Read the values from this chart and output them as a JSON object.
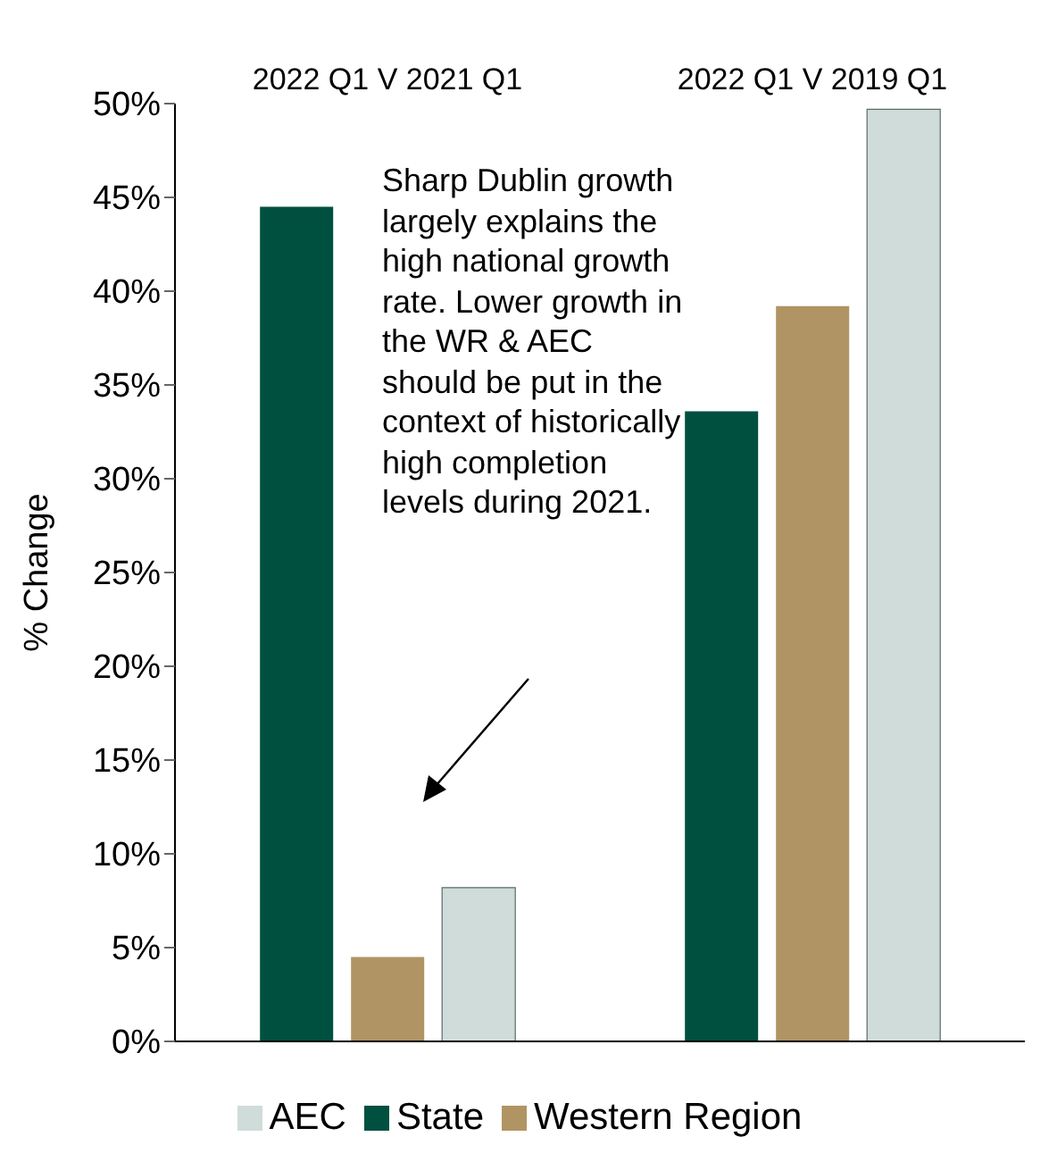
{
  "chart_data": {
    "type": "bar",
    "categories": [
      "2022 Q1 V 2021 Q1",
      "2022 Q1 V 2019 Q1"
    ],
    "ylabel": "% Change",
    "series": [
      {
        "name": "State",
        "color": "#00503f",
        "values": [
          44.5,
          33.6
        ]
      },
      {
        "name": "Western Region",
        "color": "#b09463",
        "values": [
          4.5,
          39.2
        ]
      },
      {
        "name": "AEC",
        "color": "#cfdcda",
        "values": [
          8.2,
          49.7
        ]
      }
    ],
    "ylim": [
      0,
      50
    ],
    "yticks": [
      {
        "value": 0,
        "label": "0%"
      },
      {
        "value": 5,
        "label": "5%"
      },
      {
        "value": 10,
        "label": "10%"
      },
      {
        "value": 15,
        "label": "15%"
      },
      {
        "value": 20,
        "label": "20%"
      },
      {
        "value": 25,
        "label": "25%"
      },
      {
        "value": 30,
        "label": "30%"
      },
      {
        "value": 35,
        "label": "35%"
      },
      {
        "value": 40,
        "label": "40%"
      },
      {
        "value": 45,
        "label": "45%"
      },
      {
        "value": 50,
        "label": "50%"
      }
    ],
    "annotations": [
      "Sharp Dublin growth largely explains the high national growth rate. Lower growth in the WR & AEC should be put in the context of  historically high completion levels during 2021."
    ],
    "grid": false,
    "legend": "bottom"
  }
}
